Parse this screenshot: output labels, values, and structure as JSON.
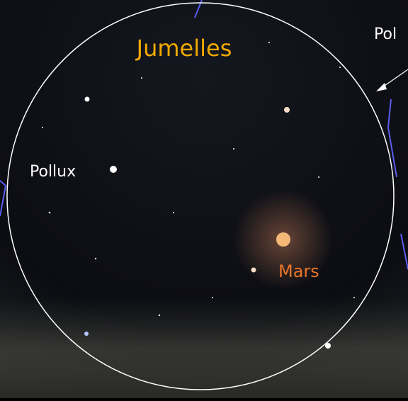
{
  "title": "Jumelles",
  "labels": {
    "pollux": "Pollux",
    "mars": "Mars",
    "corner": "Pol"
  }
}
